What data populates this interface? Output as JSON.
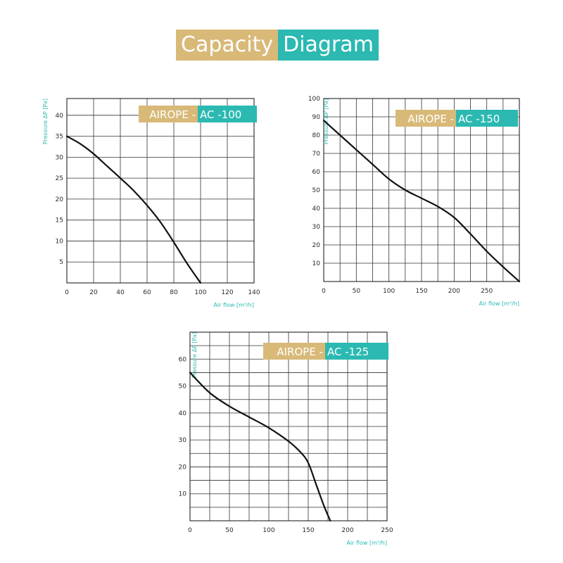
{
  "header": {
    "title_part1": "Capacity",
    "title_part2": "Diagram",
    "colors": {
      "gold": "#d8b978",
      "teal": "#2bb9b1"
    }
  },
  "chart_data": [
    {
      "type": "line",
      "label_part1": "AIROPE -",
      "label_part2": "AC -100",
      "xlabel": "Air flow [m³/h]",
      "ylabel": "Pressure ΔP [Pa]",
      "xlim": [
        0,
        140
      ],
      "ylim": [
        0,
        44
      ],
      "xticks": [
        0,
        20,
        40,
        60,
        80,
        100,
        120,
        140
      ],
      "yticks": [
        5,
        10,
        15,
        20,
        25,
        30,
        35,
        40
      ],
      "grid": {
        "x_step": 20,
        "y_step": 5
      },
      "series": [
        {
          "x": [
            0,
            10,
            20,
            30,
            40,
            50,
            60,
            70,
            80,
            90,
            100
          ],
          "y": [
            35,
            33.2,
            30.8,
            27.9,
            25,
            22,
            18.5,
            14.5,
            9.7,
            4.6,
            0
          ]
        }
      ]
    },
    {
      "type": "line",
      "label_part1": "AIROPE -",
      "label_part2": "AC -150",
      "xlabel": "Air flow [m³/h]",
      "ylabel": "Pressure ΔP [Pa]",
      "xlim": [
        0,
        300
      ],
      "ylim": [
        0,
        100
      ],
      "xticks": [
        0,
        50,
        100,
        150,
        200,
        250
      ],
      "yticks": [
        10,
        20,
        30,
        40,
        50,
        60,
        70,
        80,
        90,
        100
      ],
      "grid": {
        "x_step": 25,
        "y_step": 10
      },
      "series": [
        {
          "x": [
            0,
            25,
            50,
            75,
            100,
            125,
            150,
            175,
            200,
            225,
            250,
            275,
            300
          ],
          "y": [
            88,
            80,
            72,
            64,
            56,
            50,
            45.5,
            41,
            35,
            26,
            16.5,
            8,
            0
          ]
        }
      ]
    },
    {
      "type": "line",
      "label_part1": "AIROPE -",
      "label_part2": "AC -125",
      "xlabel": "Air flow [m³/h]",
      "ylabel": "Pressure ΔP [Pa]",
      "xlim": [
        0,
        250
      ],
      "ylim": [
        0,
        70
      ],
      "xticks": [
        0,
        50,
        100,
        150,
        200,
        250
      ],
      "yticks": [
        10,
        20,
        30,
        40,
        50,
        60
      ],
      "grid": {
        "x_step": 25,
        "y_step": 5
      },
      "series": [
        {
          "x": [
            0,
            25,
            50,
            75,
            100,
            125,
            140,
            150,
            160,
            170,
            178
          ],
          "y": [
            55,
            47.5,
            42.5,
            38.5,
            34.5,
            29.5,
            25.5,
            21.5,
            13.5,
            5.5,
            0
          ]
        }
      ]
    }
  ]
}
